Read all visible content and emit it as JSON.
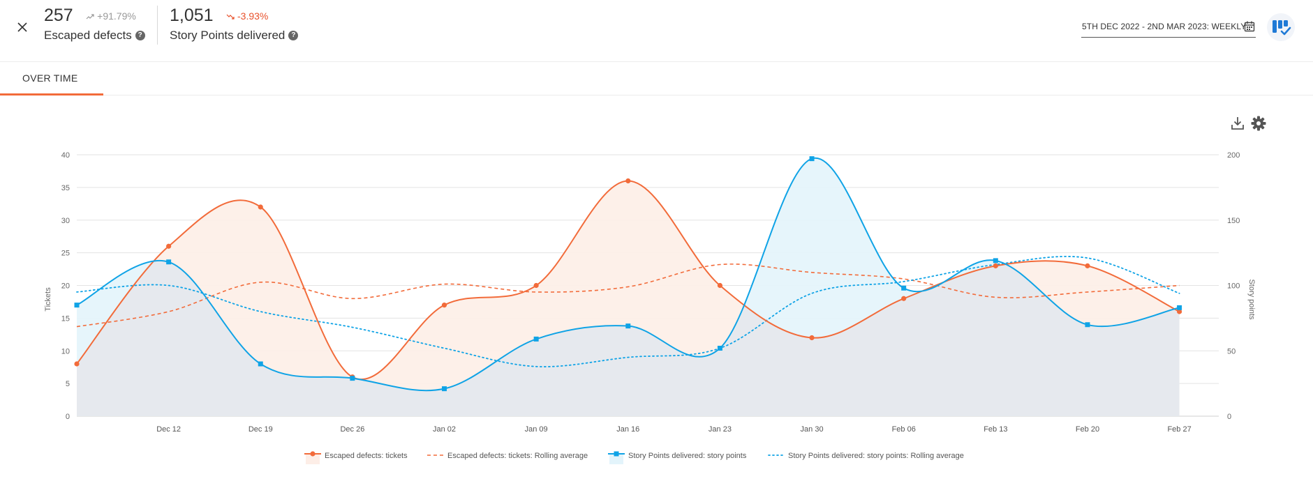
{
  "header": {
    "metric_1": {
      "value": "257",
      "change": "+91.79%",
      "label": "Escaped defects"
    },
    "metric_2": {
      "value": "1,051",
      "change": "-3.93%",
      "label": "Story Points delivered"
    },
    "help_glyph": "?",
    "date_range": "5TH DEC 2022 - 2ND MAR 2023: WEEKLY"
  },
  "tabs": [
    {
      "label": "OVER TIME"
    }
  ],
  "colors": {
    "defects": "#f26b3a",
    "defects_fill": "#fdeee7",
    "story": "#0fa3e6",
    "story_fill": "#e3f4fb",
    "overlap_fill": "#e6e9ee",
    "up_trend": "#999999",
    "down_trend": "#e8502a"
  },
  "chart_data": {
    "type": "line",
    "x_tick_labels": [
      "Dec 12",
      "Dec 19",
      "Dec 26",
      "Jan 02",
      "Jan 09",
      "Jan 16",
      "Jan 23",
      "Jan 30",
      "Feb 06",
      "Feb 13",
      "Feb 20",
      "Feb 27"
    ],
    "x_domain_days": [
      0,
      87
    ],
    "x_tick_days": [
      7,
      14,
      21,
      28,
      35,
      42,
      49,
      56,
      63,
      70,
      77,
      84
    ],
    "y_left": {
      "label": "Tickets",
      "range": [
        0,
        40
      ],
      "ticks": [
        0,
        5,
        10,
        15,
        20,
        25,
        30,
        35,
        40
      ]
    },
    "y_right": {
      "label": "Story points",
      "range": [
        0,
        200
      ],
      "ticks": [
        0,
        50,
        100,
        150,
        200
      ]
    },
    "series": [
      {
        "name": "Escaped defects: tickets",
        "axis": "left",
        "style": "solid",
        "marker": "circle",
        "points": [
          [
            0,
            8
          ],
          [
            7,
            26
          ],
          [
            14,
            32
          ],
          [
            21,
            6
          ],
          [
            28,
            17
          ],
          [
            35,
            20
          ],
          [
            42,
            36
          ],
          [
            49,
            20
          ],
          [
            56,
            12
          ],
          [
            63,
            18
          ],
          [
            70,
            23
          ],
          [
            77,
            23
          ],
          [
            84,
            16
          ]
        ]
      },
      {
        "name": "Escaped defects: tickets: Rolling average",
        "axis": "left",
        "style": "dashed",
        "points": [
          [
            0,
            13.7
          ],
          [
            7,
            16
          ],
          [
            14,
            20.5
          ],
          [
            21,
            18
          ],
          [
            28,
            20.2
          ],
          [
            35,
            19
          ],
          [
            42,
            19.8
          ],
          [
            49,
            23.2
          ],
          [
            56,
            22
          ],
          [
            63,
            21
          ],
          [
            70,
            18.2
          ],
          [
            77,
            19
          ],
          [
            84,
            20
          ]
        ]
      },
      {
        "name": "Story Points delivered: story points",
        "axis": "right",
        "style": "solid",
        "marker": "square",
        "points": [
          [
            0,
            85
          ],
          [
            7,
            118
          ],
          [
            14,
            40
          ],
          [
            21,
            29
          ],
          [
            28,
            21
          ],
          [
            35,
            59
          ],
          [
            42,
            69
          ],
          [
            49,
            52
          ],
          [
            56,
            197
          ],
          [
            63,
            98
          ],
          [
            70,
            119
          ],
          [
            77,
            70
          ],
          [
            84,
            83
          ]
        ]
      },
      {
        "name": "Story Points delivered: story points: Rolling average",
        "axis": "right",
        "style": "dotted",
        "points": [
          [
            0,
            95
          ],
          [
            7,
            100
          ],
          [
            14,
            80
          ],
          [
            21,
            68
          ],
          [
            28,
            52
          ],
          [
            35,
            38
          ],
          [
            42,
            45
          ],
          [
            49,
            52
          ],
          [
            56,
            94
          ],
          [
            63,
            103
          ],
          [
            70,
            116
          ],
          [
            77,
            121
          ],
          [
            84,
            94
          ]
        ]
      }
    ]
  }
}
